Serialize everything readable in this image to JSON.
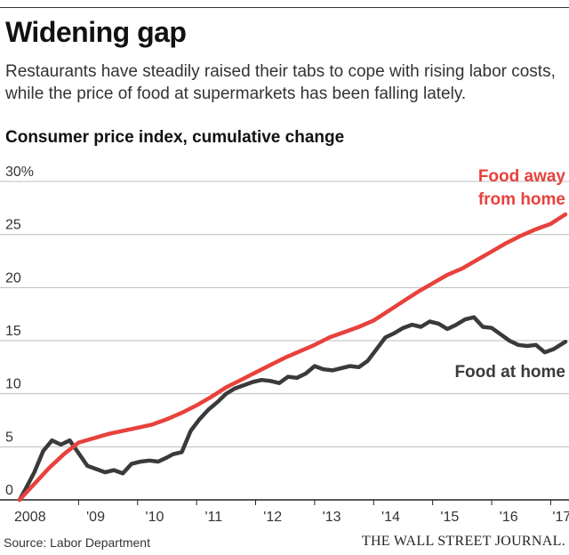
{
  "header": {
    "title": "Widening gap",
    "subtitle": "Restaurants have steadily raised their tabs to cope with rising labor costs, while the price of food at supermarkets has been falling lately.",
    "chart_title": "Consumer price index, cumulative change"
  },
  "footer": {
    "source": "Source: Labor Department",
    "publisher": "THE WALL STREET JOURNAL."
  },
  "chart_data": {
    "type": "line",
    "title": "Consumer price index, cumulative change",
    "xlabel": "",
    "ylabel": "",
    "ylim": [
      0,
      30
    ],
    "xlim": [
      2008,
      2017.25
    ],
    "grid": true,
    "y_ticks": [
      {
        "value": 0,
        "label": "0"
      },
      {
        "value": 5,
        "label": "5"
      },
      {
        "value": 10,
        "label": "10"
      },
      {
        "value": 15,
        "label": "15"
      },
      {
        "value": 20,
        "label": "20"
      },
      {
        "value": 25,
        "label": "25"
      },
      {
        "value": 30,
        "label": "30%"
      }
    ],
    "x_ticks": [
      {
        "value": 2008,
        "label": "2008"
      },
      {
        "value": 2009,
        "label": "'09"
      },
      {
        "value": 2010,
        "label": "'10"
      },
      {
        "value": 2011,
        "label": "'11"
      },
      {
        "value": 2012,
        "label": "'12"
      },
      {
        "value": 2013,
        "label": "'13"
      },
      {
        "value": 2014,
        "label": "'14"
      },
      {
        "value": 2015,
        "label": "'15"
      },
      {
        "value": 2016,
        "label": "'16"
      },
      {
        "value": 2017,
        "label": "'17"
      }
    ],
    "series": [
      {
        "name": "Food away from home",
        "label_lines": [
          "Food away",
          "from home"
        ],
        "color": "#e8413c",
        "x": [
          2008.0,
          2008.25,
          2008.5,
          2008.75,
          2009.0,
          2009.25,
          2009.5,
          2009.75,
          2010.0,
          2010.25,
          2010.5,
          2010.75,
          2011.0,
          2011.25,
          2011.5,
          2011.75,
          2012.0,
          2012.25,
          2012.5,
          2012.75,
          2013.0,
          2013.25,
          2013.5,
          2013.75,
          2014.0,
          2014.25,
          2014.5,
          2014.75,
          2015.0,
          2015.25,
          2015.5,
          2015.75,
          2016.0,
          2016.25,
          2016.5,
          2016.75,
          2017.0,
          2017.25
        ],
        "values": [
          0.0,
          1.5,
          3.0,
          4.3,
          5.4,
          5.8,
          6.2,
          6.5,
          6.8,
          7.1,
          7.6,
          8.2,
          8.9,
          9.7,
          10.6,
          11.3,
          12.0,
          12.7,
          13.4,
          14.0,
          14.6,
          15.3,
          15.8,
          16.3,
          16.9,
          17.8,
          18.7,
          19.6,
          20.4,
          21.2,
          21.8,
          22.6,
          23.4,
          24.2,
          24.9,
          25.5,
          26.0,
          26.9
        ]
      },
      {
        "name": "Food at home",
        "label_lines": [
          "Food at home"
        ],
        "color": "#3a3a3a",
        "x": [
          2008.0,
          2008.1,
          2008.25,
          2008.4,
          2008.55,
          2008.7,
          2008.85,
          2009.0,
          2009.15,
          2009.3,
          2009.45,
          2009.6,
          2009.75,
          2009.9,
          2010.05,
          2010.2,
          2010.35,
          2010.5,
          2010.6,
          2010.75,
          2010.9,
          2011.05,
          2011.2,
          2011.35,
          2011.5,
          2011.65,
          2011.8,
          2011.95,
          2012.1,
          2012.25,
          2012.4,
          2012.55,
          2012.7,
          2012.85,
          2013.0,
          2013.15,
          2013.3,
          2013.45,
          2013.6,
          2013.75,
          2013.9,
          2014.05,
          2014.2,
          2014.35,
          2014.5,
          2014.65,
          2014.8,
          2014.95,
          2015.1,
          2015.25,
          2015.4,
          2015.55,
          2015.7,
          2015.85,
          2016.0,
          2016.15,
          2016.3,
          2016.45,
          2016.6,
          2016.75,
          2016.9,
          2017.05,
          2017.25
        ],
        "values": [
          0.0,
          1.0,
          2.6,
          4.6,
          5.6,
          5.2,
          5.6,
          4.4,
          3.2,
          2.9,
          2.6,
          2.8,
          2.5,
          3.4,
          3.6,
          3.7,
          3.6,
          4.0,
          4.3,
          4.5,
          6.5,
          7.6,
          8.5,
          9.2,
          10.0,
          10.5,
          10.8,
          11.1,
          11.3,
          11.2,
          11.0,
          11.6,
          11.5,
          11.9,
          12.6,
          12.3,
          12.2,
          12.4,
          12.6,
          12.5,
          13.1,
          14.2,
          15.3,
          15.7,
          16.2,
          16.5,
          16.3,
          16.8,
          16.6,
          16.1,
          16.5,
          17.0,
          17.2,
          16.3,
          16.2,
          15.6,
          15.0,
          14.6,
          14.5,
          14.6,
          13.9,
          14.2,
          14.9
        ]
      }
    ]
  }
}
